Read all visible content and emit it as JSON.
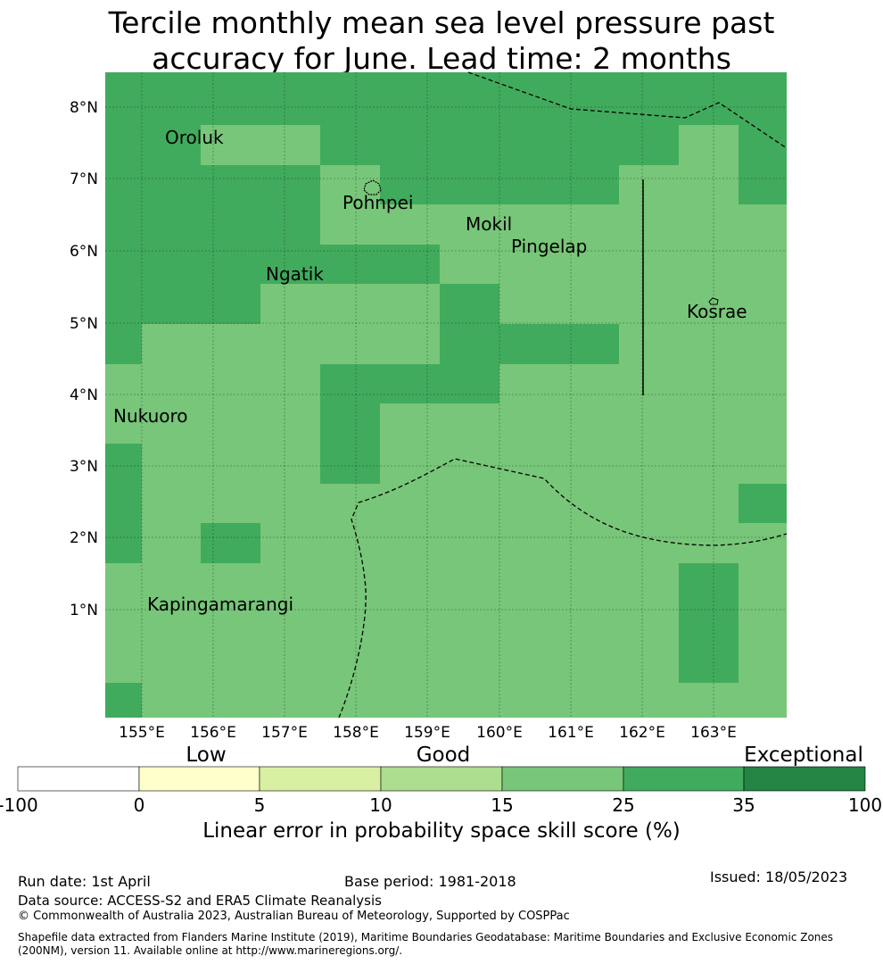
{
  "title_lines": [
    "Tercile monthly mean sea level pressure past",
    "accuracy for June. Lead time: 2 months"
  ],
  "map": {
    "lon_labels": [
      "155°E",
      "156°E",
      "157°E",
      "158°E",
      "159°E",
      "160°E",
      "161°E",
      "162°E",
      "163°E"
    ],
    "lat_labels": [
      "8°N",
      "7°N",
      "6°N",
      "5°N",
      "4°N",
      "3°N",
      "2°N",
      "1°N"
    ],
    "places": [
      "Oroluk",
      "Pohnpei",
      "Mokil",
      "Pingelap",
      "Ngatik",
      "Kosrae",
      "Nukuoro",
      "Kapingamarangi"
    ],
    "skill_grid_legend_classes": [
      "15–25 (good)",
      "25–35 (good-exceptional)"
    ]
  },
  "colorbar": {
    "category_words": [
      "Low",
      "Good",
      "Exceptional"
    ],
    "ticks": [
      "-100",
      "0",
      "5",
      "10",
      "15",
      "25",
      "35",
      "100"
    ],
    "colors": [
      "#ffffff",
      "#ffffcc",
      "#d9f0a3",
      "#addd8e",
      "#78c679",
      "#41ab5d",
      "#238443"
    ],
    "label": "Linear error in probability space skill score (%)"
  },
  "footer": {
    "run_date": "Run date: 1st April",
    "base_period": "Base period: 1981-2018",
    "issued": "Issued: 18/05/2023",
    "data_source": "Data source: ACCESS-S2 and ERA5 Climate Reanalysis",
    "copyright": "© Commonwealth of Australia 2023, Australian Bureau of Meteorology, Supported by COSPPac",
    "shapefile_line1": "Shapefile data extracted from Flanders Marine Institute (2019), Maritime Boundaries Geodatabase: Maritime Boundaries and Exclusive Economic Zones",
    "shapefile_line2": "(200NM), version 11. Available online at http://www.marineregions.org/."
  }
}
